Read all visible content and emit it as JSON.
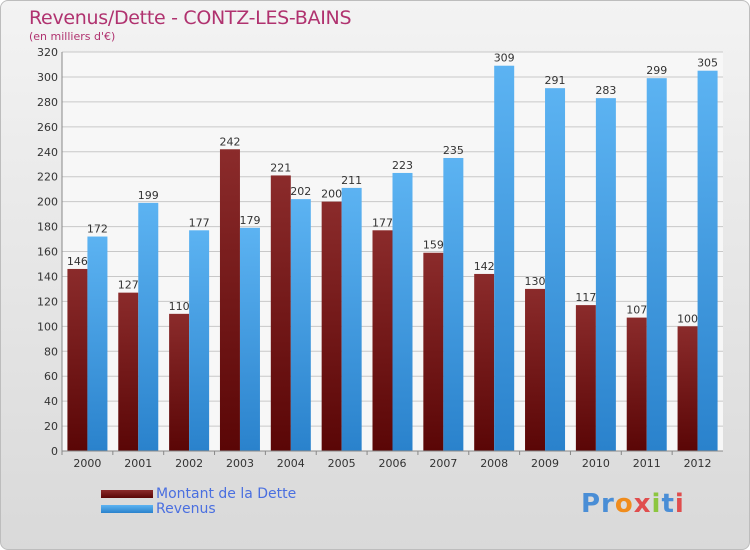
{
  "title": "Revenus/Dette - CONTZ-LES-BAINS",
  "subtitle": "(en milliers d'€)",
  "logo": {
    "text": "Proxiti"
  },
  "colors": {
    "title": "#b0326f",
    "dette": "#7a1a1a",
    "revenus": "#3d9be6",
    "legend_text": "#4a6fe0"
  },
  "legend": {
    "dette_label": "Montant de la Dette",
    "revenus_label": "Revenus"
  },
  "chart_data": {
    "type": "bar",
    "categories": [
      "2000",
      "2001",
      "2002",
      "2003",
      "2004",
      "2005",
      "2006",
      "2007",
      "2008",
      "2009",
      "2010",
      "2011",
      "2012"
    ],
    "series": [
      {
        "name": "Montant de la Dette",
        "values": [
          146,
          127,
          110,
          242,
          221,
          200,
          177,
          159,
          142,
          130,
          117,
          107,
          100
        ]
      },
      {
        "name": "Revenus",
        "values": [
          172,
          199,
          177,
          179,
          202,
          211,
          223,
          235,
          309,
          291,
          283,
          299,
          305
        ]
      }
    ],
    "ylim": [
      0,
      320
    ],
    "yticks": [
      0,
      20,
      40,
      60,
      80,
      100,
      120,
      140,
      160,
      180,
      200,
      220,
      240,
      260,
      280,
      300,
      320
    ],
    "grid": true,
    "legend_position": "bottom-left"
  }
}
